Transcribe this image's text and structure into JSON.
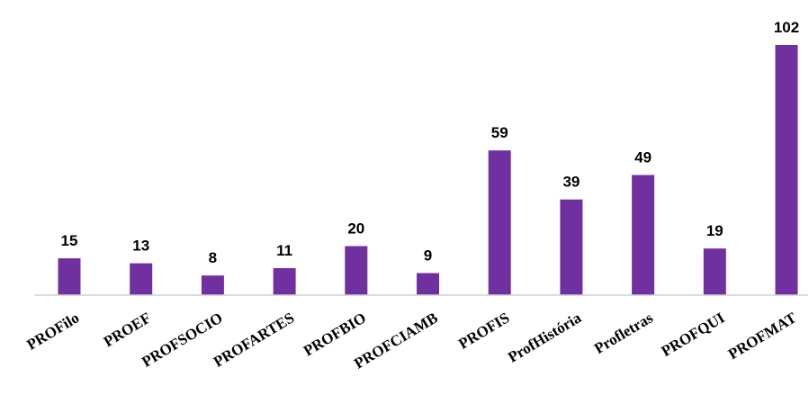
{
  "chart_data": {
    "type": "bar",
    "title": "",
    "xlabel": "",
    "ylabel": "",
    "categories": [
      "PROFilo",
      "PROEF",
      "PROFSOCIO",
      "PROFARTES",
      "PROFBIO",
      "PROFCIAMB",
      "PROFIS",
      "ProfHistória",
      "Profletras",
      "PROFQUI",
      "PROFMAT"
    ],
    "values": [
      15,
      13,
      8,
      11,
      20,
      9,
      59,
      39,
      49,
      19,
      102
    ],
    "ylim": [
      0,
      102
    ],
    "grid": false,
    "legend": "none",
    "bar_color": "#7030a0",
    "data_labels": true
  }
}
